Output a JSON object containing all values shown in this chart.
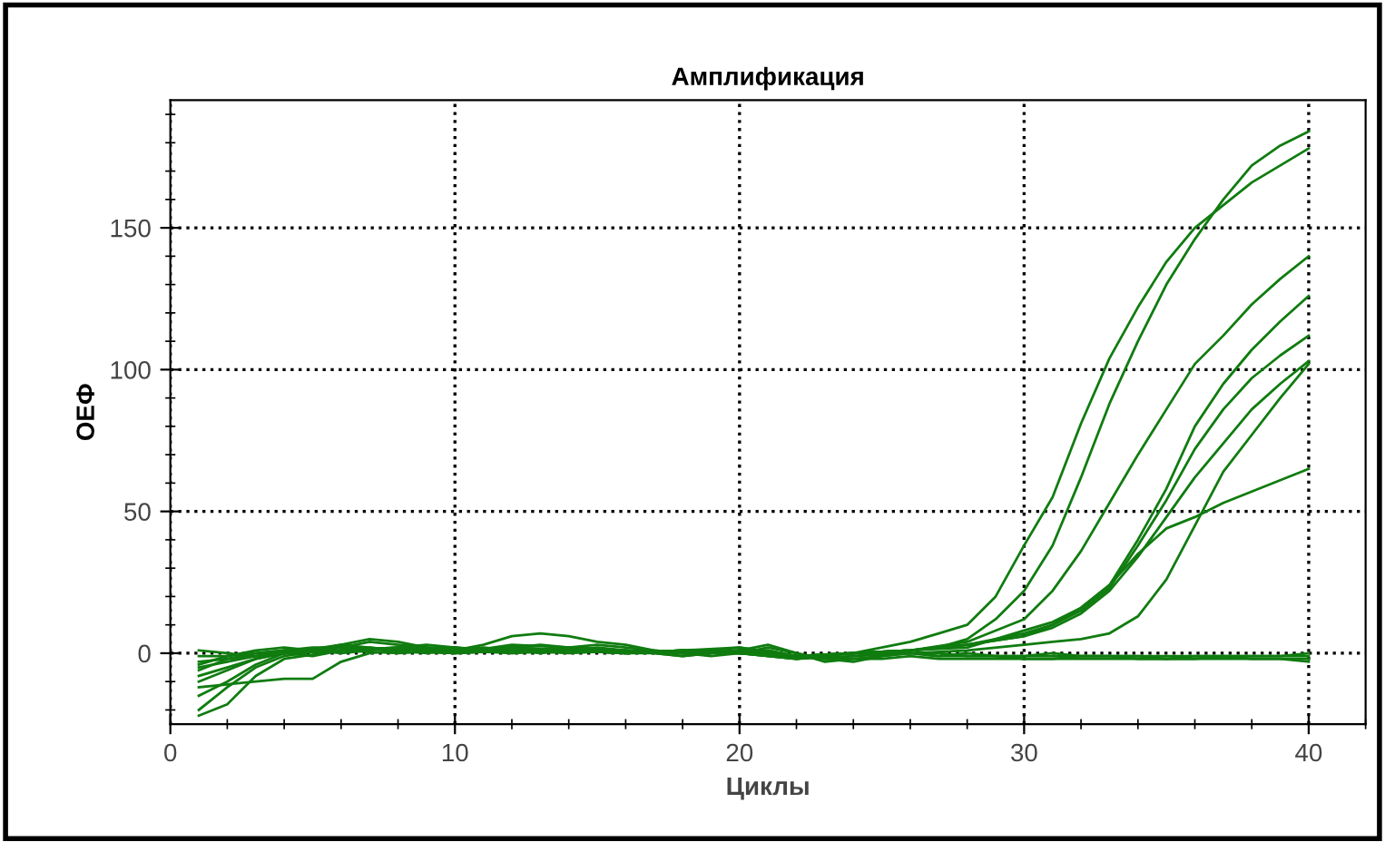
{
  "chart_data": {
    "type": "line",
    "title": "Амплификация",
    "xlabel": "Циклы",
    "ylabel": "ОЕФ",
    "xlim": [
      0,
      42
    ],
    "xticks": [
      0,
      10,
      20,
      30,
      40
    ],
    "ylim": [
      -25,
      195
    ],
    "yticks": [
      0,
      50,
      100,
      150
    ],
    "grid": true,
    "legend": false,
    "marker": "none",
    "line_style": "solid",
    "series": [
      {
        "color": "#107c10",
        "x": [
          1,
          2,
          3,
          4,
          6,
          8,
          10,
          12,
          14,
          16,
          18,
          20,
          22,
          24,
          25,
          26,
          27,
          28,
          29,
          30,
          31,
          32,
          33,
          34,
          35,
          36,
          37,
          38,
          39,
          40
        ],
        "values": [
          -22,
          -18,
          -8,
          -2,
          1,
          2,
          0,
          3,
          2,
          1,
          0,
          1,
          -1,
          0,
          2,
          4,
          7,
          10,
          20,
          38,
          55,
          81,
          104,
          122,
          138,
          150,
          158,
          166,
          172,
          178
        ]
      },
      {
        "color": "#107c10",
        "x": [
          1,
          2,
          3,
          4,
          6,
          8,
          10,
          12,
          14,
          16,
          18,
          20,
          22,
          24,
          26,
          27,
          28,
          29,
          30,
          31,
          32,
          33,
          34,
          35,
          36,
          37,
          38,
          39,
          40
        ],
        "values": [
          -20,
          -12,
          -5,
          -1,
          2,
          1,
          1,
          2,
          1,
          0,
          1,
          0,
          -2,
          0,
          1,
          2,
          5,
          12,
          22,
          38,
          62,
          88,
          110,
          130,
          146,
          160,
          172,
          179,
          184
        ]
      },
      {
        "color": "#107c10",
        "x": [
          1,
          2,
          3,
          4,
          6,
          8,
          10,
          12,
          14,
          16,
          18,
          20,
          22,
          24,
          26,
          28,
          29,
          30,
          31,
          32,
          33,
          34,
          35,
          36,
          37,
          38,
          39,
          40
        ],
        "values": [
          -10,
          -6,
          -2,
          0,
          3,
          1,
          2,
          1,
          0,
          1,
          0,
          2,
          -1,
          0,
          1,
          4,
          8,
          12,
          22,
          36,
          53,
          70,
          86,
          102,
          112,
          123,
          132,
          140
        ]
      },
      {
        "color": "#107c10",
        "x": [
          1,
          2,
          3,
          4,
          6,
          8,
          10,
          12,
          14,
          16,
          18,
          20,
          22,
          24,
          26,
          28,
          29,
          30,
          31,
          32,
          33,
          34,
          35,
          36,
          37,
          38,
          39,
          40
        ],
        "values": [
          -15,
          -10,
          -4,
          0,
          1,
          0,
          1,
          2,
          1,
          0,
          1,
          0,
          -2,
          0,
          1,
          2,
          5,
          8,
          11,
          16,
          24,
          40,
          58,
          80,
          95,
          107,
          117,
          126
        ]
      },
      {
        "color": "#107c10",
        "x": [
          1,
          2,
          3,
          4,
          6,
          8,
          10,
          12,
          14,
          16,
          18,
          20,
          22,
          24,
          26,
          28,
          30,
          31,
          32,
          33,
          34,
          35,
          36,
          37,
          38,
          39,
          40
        ],
        "values": [
          -5,
          -3,
          -1,
          1,
          2,
          1,
          0,
          1,
          2,
          1,
          0,
          1,
          -1,
          0,
          1,
          3,
          7,
          10,
          15,
          23,
          38,
          54,
          72,
          86,
          97,
          105,
          112
        ]
      },
      {
        "color": "#107c10",
        "x": [
          1,
          2,
          3,
          4,
          5,
          6,
          7,
          8,
          10,
          12,
          14,
          16,
          18,
          20,
          22,
          24,
          26,
          28,
          30,
          31,
          32,
          33,
          34,
          35,
          36,
          37,
          38,
          39,
          40
        ],
        "values": [
          -12,
          -11,
          -10,
          -9,
          -9,
          -3,
          0,
          1,
          0,
          1,
          1,
          0,
          1,
          0,
          -1,
          0,
          1,
          3,
          6,
          9,
          14,
          22,
          34,
          48,
          62,
          74,
          86,
          95,
          103
        ]
      },
      {
        "color": "#107c10",
        "x": [
          1,
          2,
          3,
          4,
          6,
          8,
          10,
          12,
          14,
          16,
          18,
          20,
          22,
          24,
          26,
          28,
          30,
          31,
          32,
          33,
          34,
          35,
          36,
          37,
          38,
          39,
          40
        ],
        "values": [
          -8,
          -5,
          -2,
          0,
          1,
          2,
          1,
          0,
          1,
          0,
          1,
          2,
          -1,
          0,
          1,
          3,
          6,
          10,
          16,
          24,
          35,
          44,
          48,
          53,
          57,
          61,
          65
        ]
      },
      {
        "color": "#107c10",
        "x": [
          1,
          2,
          3,
          4,
          6,
          8,
          10,
          12,
          14,
          16,
          18,
          20,
          22,
          24,
          26,
          28,
          30,
          31,
          32,
          33,
          34,
          35,
          36,
          37,
          38,
          39,
          40
        ],
        "values": [
          -3,
          -2,
          0,
          1,
          2,
          1,
          0,
          2,
          1,
          0,
          1,
          0,
          -2,
          -1,
          0,
          1,
          3,
          4,
          5,
          7,
          13,
          26,
          45,
          64,
          77,
          90,
          102
        ]
      },
      {
        "color": "#107c10",
        "x": [
          1,
          2,
          3,
          4,
          5,
          6,
          7,
          8,
          9,
          10,
          11,
          12,
          13,
          14,
          15,
          16,
          17,
          18,
          19,
          20,
          21,
          22,
          23,
          24,
          25,
          26,
          27,
          28,
          29,
          30,
          31,
          32,
          33,
          34,
          35,
          36,
          37,
          38,
          39,
          40
        ],
        "values": [
          -1,
          -1,
          0,
          1,
          2,
          2,
          4,
          3,
          2,
          1,
          3,
          6,
          7,
          6,
          4,
          3,
          1,
          0,
          0,
          1,
          1,
          -1,
          -2,
          -1,
          0,
          0,
          -1,
          -1,
          -1,
          -1,
          -1,
          -1,
          -1,
          -1,
          -1,
          -1,
          -1,
          -1,
          -1,
          -1
        ]
      },
      {
        "color": "#107c10",
        "x": [
          1,
          2,
          3,
          4,
          5,
          6,
          7,
          8,
          9,
          10,
          11,
          12,
          13,
          14,
          15,
          16,
          17,
          18,
          19,
          20,
          21,
          22,
          23,
          24,
          25,
          26,
          27,
          28,
          29,
          30,
          31,
          32,
          33,
          34,
          35,
          36,
          37,
          38,
          39,
          40
        ],
        "values": [
          -4,
          -1,
          1,
          2,
          1,
          3,
          5,
          4,
          2,
          2,
          1,
          2,
          3,
          2,
          1,
          0,
          0,
          -1,
          0,
          1,
          3,
          0,
          -3,
          -2,
          -1,
          0,
          0,
          -1,
          -1,
          -2,
          -2,
          -1,
          -1,
          -2,
          -2,
          -2,
          -1,
          -2,
          -2,
          -2
        ]
      },
      {
        "color": "#107c10",
        "x": [
          1,
          2,
          3,
          4,
          5,
          6,
          7,
          8,
          9,
          10,
          11,
          12,
          13,
          14,
          15,
          16,
          17,
          18,
          19,
          20,
          21,
          22,
          23,
          24,
          25,
          26,
          27,
          28,
          29,
          30,
          31,
          32,
          33,
          34,
          35,
          36,
          37,
          38,
          39,
          40
        ],
        "values": [
          1,
          0,
          -1,
          0,
          1,
          0,
          1,
          2,
          3,
          2,
          1,
          0,
          1,
          2,
          3,
          2,
          1,
          0,
          -1,
          0,
          1,
          -1,
          -2,
          -3,
          -1,
          0,
          -1,
          0,
          -1,
          -1,
          0,
          -1,
          -1,
          -1,
          -2,
          -1,
          -1,
          -1,
          -1,
          0
        ]
      },
      {
        "color": "#107c10",
        "x": [
          1,
          2,
          3,
          4,
          5,
          6,
          7,
          8,
          9,
          10,
          11,
          12,
          13,
          14,
          15,
          16,
          17,
          18,
          19,
          20,
          21,
          22,
          23,
          24,
          25,
          26,
          27,
          28,
          29,
          30,
          31,
          32,
          33,
          34,
          35,
          36,
          37,
          38,
          39,
          40
        ],
        "values": [
          -6,
          -2,
          -1,
          0,
          -1,
          1,
          2,
          1,
          0,
          1,
          2,
          1,
          0,
          1,
          2,
          1,
          0,
          -1,
          0,
          0,
          2,
          0,
          -2,
          -2,
          -2,
          -1,
          -2,
          -2,
          -2,
          -2,
          -2,
          -2,
          -2,
          -2,
          -2,
          -2,
          -2,
          -2,
          -2,
          -3
        ]
      }
    ]
  }
}
